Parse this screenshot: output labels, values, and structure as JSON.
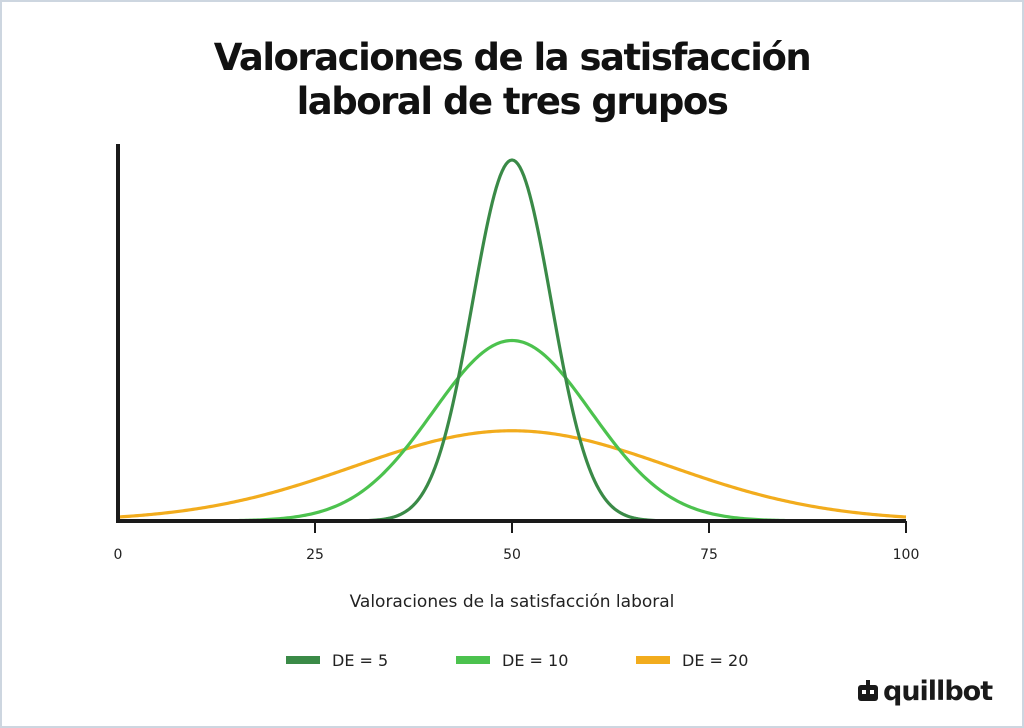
{
  "chart_data": {
    "type": "line",
    "title_lines": [
      "Valoraciones de la satisfacción",
      "laboral de tres grupos"
    ],
    "xlabel": "Valoraciones de la satisfacción laboral",
    "ylabel": "",
    "xlim": [
      0,
      100
    ],
    "x_ticks": [
      0,
      25,
      50,
      75,
      100
    ],
    "x_tick_labels": [
      "0",
      "25",
      "50",
      "75",
      "100"
    ],
    "y_ticks_visible": false,
    "grid": false,
    "legend_position": "bottom",
    "series": [
      {
        "name": "DE = 5",
        "mean": 50,
        "sd": 5,
        "color": "#3a8a47"
      },
      {
        "name": "DE = 10",
        "mean": 50,
        "sd": 10,
        "color": "#4cc24e"
      },
      {
        "name": "DE = 20",
        "mean": 50,
        "sd": 20,
        "color": "#f2ac1d"
      }
    ]
  },
  "brand": {
    "logo_text": "quillbot",
    "logo_icon": "quillbot-robot-icon"
  },
  "colors": {
    "axis": "#1a1a1a",
    "frame": "#cdd6e0"
  }
}
